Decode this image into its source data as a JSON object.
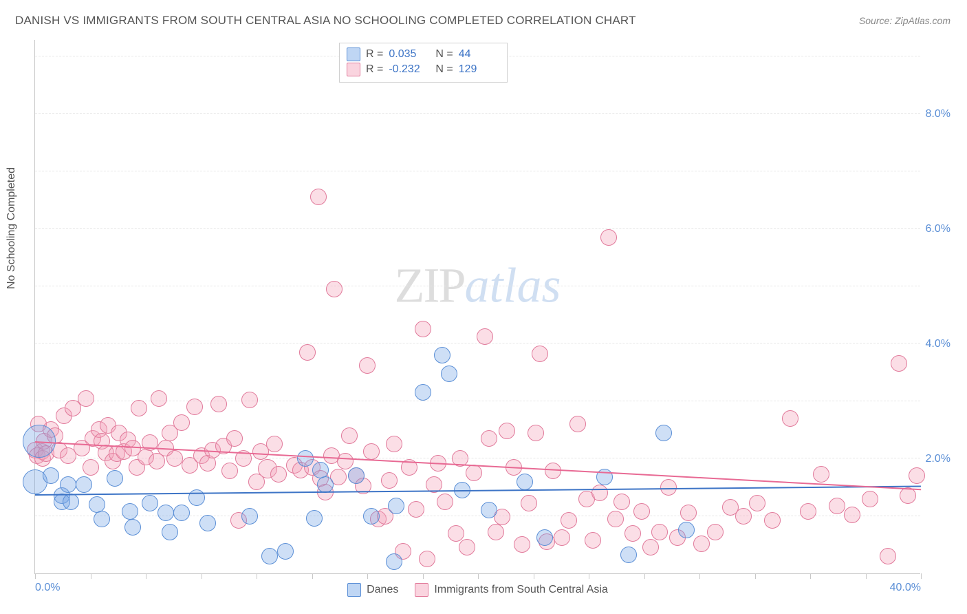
{
  "title": "DANISH VS IMMIGRANTS FROM SOUTH CENTRAL ASIA NO SCHOOLING COMPLETED CORRELATION CHART",
  "source": "Source: ZipAtlas.com",
  "y_axis_label": "No Schooling Completed",
  "watermark": {
    "zip": "ZIP",
    "atlas": "atlas"
  },
  "chart": {
    "type": "scatter",
    "xlim": [
      0,
      40
    ],
    "ylim": [
      0,
      9.3
    ],
    "xticks": [
      0,
      2.5,
      5,
      7.5,
      10,
      12.5,
      15,
      17.5,
      20,
      22.5,
      25,
      27.5,
      30,
      32.5,
      35,
      37.5,
      40
    ],
    "xtick_labels": {
      "0": "0.0%",
      "40": "40.0%"
    },
    "yticks": [
      2,
      4,
      6,
      8
    ],
    "ytick_labels": [
      "2.0%",
      "4.0%",
      "6.0%",
      "8.0%"
    ],
    "grid_positions_y": [
      1,
      2,
      3,
      4,
      5,
      6,
      7,
      8,
      9
    ],
    "background_color": "#ffffff",
    "grid_color": "#e6e6e6",
    "marker_radius": 12,
    "series": [
      {
        "name": "Danes",
        "color_fill": "rgba(114,163,230,0.35)",
        "color_stroke": "#5b8fd6",
        "R": "0.035",
        "N": "44",
        "trend": {
          "x1": 0,
          "y1": 1.35,
          "x2": 40,
          "y2": 1.5
        },
        "data": [
          [
            0.0,
            1.6,
            18
          ],
          [
            0.2,
            2.3,
            24
          ],
          [
            0.7,
            1.7
          ],
          [
            1.2,
            1.35
          ],
          [
            1.2,
            1.25
          ],
          [
            1.5,
            1.55
          ],
          [
            1.6,
            1.25
          ],
          [
            2.2,
            1.55
          ],
          [
            2.8,
            1.2
          ],
          [
            3.0,
            0.95
          ],
          [
            3.6,
            1.65
          ],
          [
            4.3,
            1.08
          ],
          [
            4.4,
            0.8
          ],
          [
            5.2,
            1.22
          ],
          [
            5.9,
            1.05
          ],
          [
            6.1,
            0.72
          ],
          [
            6.6,
            1.05
          ],
          [
            7.3,
            1.32
          ],
          [
            7.8,
            0.88
          ],
          [
            9.7,
            1.0
          ],
          [
            10.6,
            0.3
          ],
          [
            11.3,
            0.38
          ],
          [
            12.2,
            2.0
          ],
          [
            12.6,
            0.96
          ],
          [
            12.9,
            1.8
          ],
          [
            13.1,
            1.55
          ],
          [
            14.5,
            1.7
          ],
          [
            15.2,
            1.0
          ],
          [
            16.2,
            0.2
          ],
          [
            16.3,
            1.18
          ],
          [
            17.5,
            3.15
          ],
          [
            18.4,
            3.8
          ],
          [
            18.7,
            3.48
          ],
          [
            19.3,
            1.45
          ],
          [
            20.5,
            1.1
          ],
          [
            22.1,
            1.6
          ],
          [
            23.0,
            0.62
          ],
          [
            25.7,
            1.68
          ],
          [
            26.8,
            0.32
          ],
          [
            28.4,
            2.45
          ],
          [
            29.4,
            0.75
          ]
        ]
      },
      {
        "name": "Immigrants from South Central Asia",
        "color_fill": "rgba(244,160,184,0.35)",
        "color_stroke": "#e17a9b",
        "R": "-0.232",
        "N": "129",
        "trend": {
          "x1": 0,
          "y1": 2.28,
          "x2": 40,
          "y2": 1.45
        },
        "data": [
          [
            0.0,
            2.15
          ],
          [
            0.1,
            2.05
          ],
          [
            0.15,
            2.6
          ],
          [
            0.3,
            2.12
          ],
          [
            0.35,
            2.0
          ],
          [
            0.4,
            2.3
          ],
          [
            0.5,
            2.08
          ],
          [
            0.7,
            2.5
          ],
          [
            0.9,
            2.4
          ],
          [
            1.1,
            2.15
          ],
          [
            1.3,
            2.75
          ],
          [
            1.5,
            2.05
          ],
          [
            1.7,
            2.88
          ],
          [
            2.1,
            2.18
          ],
          [
            2.3,
            3.05
          ],
          [
            2.5,
            1.85
          ],
          [
            2.6,
            2.35
          ],
          [
            2.9,
            2.5
          ],
          [
            3.0,
            2.3
          ],
          [
            3.2,
            2.1
          ],
          [
            3.3,
            2.58
          ],
          [
            3.5,
            1.95
          ],
          [
            3.7,
            2.08
          ],
          [
            3.8,
            2.45
          ],
          [
            4.0,
            2.12
          ],
          [
            4.2,
            2.32
          ],
          [
            4.4,
            2.18
          ],
          [
            4.6,
            1.85
          ],
          [
            4.7,
            2.88
          ],
          [
            5.0,
            2.02
          ],
          [
            5.2,
            2.28
          ],
          [
            5.5,
            1.95
          ],
          [
            5.6,
            3.05
          ],
          [
            5.9,
            2.18
          ],
          [
            6.1,
            2.45
          ],
          [
            6.3,
            2.0
          ],
          [
            6.6,
            2.62
          ],
          [
            7.0,
            1.88
          ],
          [
            7.2,
            2.9
          ],
          [
            7.5,
            2.05
          ],
          [
            7.8,
            1.92
          ],
          [
            8.0,
            2.15
          ],
          [
            8.3,
            2.95
          ],
          [
            8.5,
            2.22
          ],
          [
            8.8,
            1.78
          ],
          [
            9.0,
            2.35
          ],
          [
            9.2,
            0.92
          ],
          [
            9.4,
            2.0
          ],
          [
            9.7,
            3.02
          ],
          [
            10.0,
            1.6
          ],
          [
            10.2,
            2.12
          ],
          [
            10.5,
            1.82,
            14
          ],
          [
            10.8,
            2.25
          ],
          [
            11.0,
            1.72
          ],
          [
            11.7,
            1.88
          ],
          [
            12.0,
            1.8
          ],
          [
            12.3,
            3.85
          ],
          [
            12.5,
            1.85
          ],
          [
            12.8,
            6.55
          ],
          [
            12.9,
            1.65
          ],
          [
            13.1,
            1.42
          ],
          [
            13.4,
            2.05
          ],
          [
            13.5,
            4.95
          ],
          [
            13.7,
            1.68
          ],
          [
            14.0,
            1.95
          ],
          [
            14.2,
            2.4
          ],
          [
            14.5,
            1.7
          ],
          [
            14.8,
            1.52
          ],
          [
            15.0,
            3.62
          ],
          [
            15.2,
            2.12
          ],
          [
            15.5,
            0.95
          ],
          [
            15.8,
            1.0
          ],
          [
            16.0,
            1.62
          ],
          [
            16.2,
            2.25
          ],
          [
            16.6,
            0.38
          ],
          [
            16.9,
            1.85
          ],
          [
            17.2,
            1.12
          ],
          [
            17.5,
            4.25
          ],
          [
            17.7,
            0.25
          ],
          [
            18.0,
            1.55
          ],
          [
            18.2,
            1.92
          ],
          [
            18.5,
            1.25
          ],
          [
            19.0,
            0.7
          ],
          [
            19.2,
            2.0
          ],
          [
            19.5,
            0.45
          ],
          [
            19.8,
            1.75
          ],
          [
            20.3,
            4.12
          ],
          [
            20.5,
            2.35
          ],
          [
            20.8,
            0.72
          ],
          [
            21.1,
            0.98
          ],
          [
            21.3,
            2.48
          ],
          [
            21.6,
            1.85
          ],
          [
            22.0,
            0.5
          ],
          [
            22.3,
            1.22
          ],
          [
            22.6,
            2.45
          ],
          [
            22.8,
            3.82
          ],
          [
            23.1,
            0.55
          ],
          [
            23.4,
            1.78
          ],
          [
            23.8,
            0.62
          ],
          [
            24.1,
            0.92
          ],
          [
            24.5,
            2.6
          ],
          [
            24.9,
            1.3
          ],
          [
            25.2,
            0.58
          ],
          [
            25.5,
            1.4
          ],
          [
            25.9,
            5.85
          ],
          [
            26.2,
            0.95
          ],
          [
            26.5,
            1.25
          ],
          [
            27.0,
            0.7
          ],
          [
            27.4,
            1.08
          ],
          [
            27.8,
            0.45
          ],
          [
            28.2,
            0.72
          ],
          [
            28.6,
            1.5
          ],
          [
            29.0,
            0.62
          ],
          [
            29.5,
            1.05
          ],
          [
            30.1,
            0.52
          ],
          [
            30.7,
            0.72
          ],
          [
            31.4,
            1.15
          ],
          [
            32.0,
            1.0
          ],
          [
            32.6,
            1.22
          ],
          [
            33.3,
            0.92
          ],
          [
            34.1,
            2.7
          ],
          [
            34.9,
            1.08
          ],
          [
            35.5,
            1.72
          ],
          [
            36.2,
            1.18
          ],
          [
            36.9,
            1.02
          ],
          [
            37.7,
            1.3
          ],
          [
            38.5,
            0.3
          ],
          [
            39.0,
            3.65
          ],
          [
            39.4,
            1.35
          ],
          [
            39.8,
            1.7
          ]
        ]
      }
    ]
  },
  "stats_legend": [
    {
      "swatch": "blue",
      "R_label": "R =",
      "R": "0.035",
      "N_label": "N =",
      "N": "44"
    },
    {
      "swatch": "pink",
      "R_label": "R =",
      "R": "-0.232",
      "N_label": "N =",
      "N": "129"
    }
  ],
  "bottom_legend": [
    {
      "swatch": "blue",
      "label": "Danes"
    },
    {
      "swatch": "pink",
      "label": "Immigrants from South Central Asia"
    }
  ]
}
